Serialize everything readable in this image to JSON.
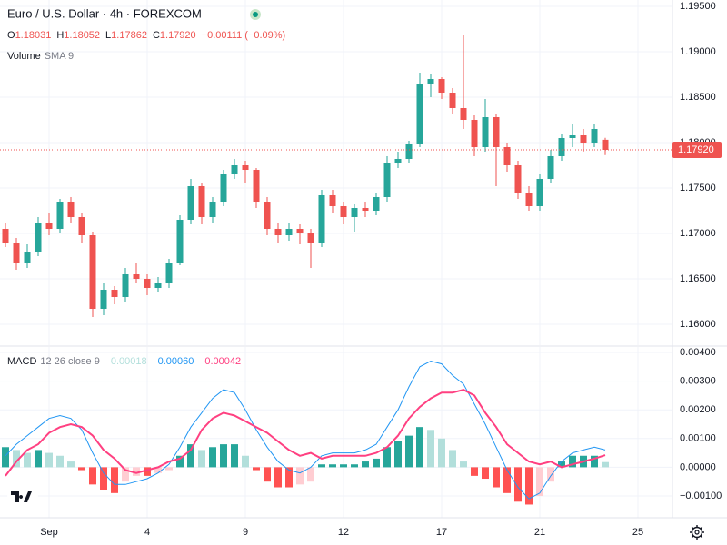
{
  "chart_data": [
    {
      "type": "candlestick",
      "title": "Euro / U.S. Dollar · 4h · FOREXCOM",
      "ohlc_labels": [
        {
          "key": "O",
          "value": "1.18031"
        },
        {
          "key": "H",
          "value": "1.18052"
        },
        {
          "key": "L",
          "value": "1.17862"
        },
        {
          "key": "C",
          "value": "1.17920"
        }
      ],
      "change_label": "−0.00111 (−0.09%)",
      "indicator_label": "Volume",
      "indicator_params": "SMA 9",
      "last_price_label": "1.17920",
      "up_color": "#26a69a",
      "down_color": "#ef5350",
      "open": [
        1.1705,
        1.169,
        1.1668,
        1.168,
        1.1712,
        1.1705,
        1.1735,
        1.1718,
        1.1698,
        1.1617,
        1.1638,
        1.163,
        1.1655,
        1.165,
        1.164,
        1.1645,
        1.1668,
        1.1715,
        1.1752,
        1.1718,
        1.1735,
        1.1765,
        1.1775,
        1.177,
        1.1735,
        1.1705,
        1.1698,
        1.1705,
        1.17,
        1.169,
        1.1742,
        1.173,
        1.1718,
        1.1728,
        1.1725,
        1.174,
        1.1778,
        1.1782,
        1.1798,
        1.1865,
        1.187,
        1.1855,
        1.1838,
        1.1825,
        1.1795,
        1.1828,
        1.1795,
        1.1775,
        1.1745,
        1.173,
        1.176,
        1.1785,
        1.1805,
        1.1808,
        1.18,
        1.18031
      ],
      "high": [
        1.1712,
        1.1695,
        1.1688,
        1.1718,
        1.1722,
        1.1738,
        1.174,
        1.1722,
        1.1702,
        1.1645,
        1.1642,
        1.1662,
        1.1668,
        1.1655,
        1.1652,
        1.1672,
        1.172,
        1.176,
        1.1755,
        1.174,
        1.177,
        1.1782,
        1.178,
        1.1772,
        1.174,
        1.1712,
        1.1712,
        1.171,
        1.1705,
        1.1748,
        1.1748,
        1.1735,
        1.1732,
        1.1735,
        1.1745,
        1.1785,
        1.179,
        1.1802,
        1.1877,
        1.1875,
        1.1872,
        1.186,
        1.1918,
        1.183,
        1.1848,
        1.1832,
        1.18,
        1.178,
        1.1752,
        1.1765,
        1.1792,
        1.181,
        1.182,
        1.1815,
        1.182,
        1.18052
      ],
      "low": [
        1.1685,
        1.166,
        1.1662,
        1.1675,
        1.1698,
        1.17,
        1.1712,
        1.169,
        1.1608,
        1.161,
        1.1622,
        1.1625,
        1.1645,
        1.1632,
        1.1635,
        1.164,
        1.1665,
        1.171,
        1.171,
        1.1712,
        1.173,
        1.176,
        1.1755,
        1.1728,
        1.1698,
        1.169,
        1.1692,
        1.1688,
        1.1662,
        1.1685,
        1.1722,
        1.171,
        1.1702,
        1.1718,
        1.172,
        1.1735,
        1.1772,
        1.1778,
        1.1795,
        1.185,
        1.1848,
        1.1832,
        1.1815,
        1.1785,
        1.179,
        1.1752,
        1.1768,
        1.1738,
        1.1725,
        1.1725,
        1.1755,
        1.178,
        1.1795,
        1.179,
        1.1795,
        1.17862
      ],
      "close": [
        1.169,
        1.1668,
        1.168,
        1.1712,
        1.1705,
        1.1735,
        1.1718,
        1.1698,
        1.1617,
        1.1638,
        1.163,
        1.1655,
        1.165,
        1.164,
        1.1645,
        1.1668,
        1.1715,
        1.1752,
        1.1718,
        1.1735,
        1.1765,
        1.1775,
        1.177,
        1.1735,
        1.1705,
        1.1698,
        1.1705,
        1.17,
        1.169,
        1.1742,
        1.173,
        1.1718,
        1.1728,
        1.1725,
        1.174,
        1.1778,
        1.1782,
        1.1798,
        1.1865,
        1.187,
        1.1855,
        1.1838,
        1.1825,
        1.1795,
        1.1828,
        1.1795,
        1.1775,
        1.1745,
        1.173,
        1.176,
        1.1785,
        1.1805,
        1.1808,
        1.18,
        1.1815,
        1.1792
      ],
      "xlim": [
        -0.5,
        61.5
      ],
      "xticks": [
        {
          "value": 4,
          "label": "Sep"
        },
        {
          "value": 13,
          "label": "4"
        },
        {
          "value": 22,
          "label": "9"
        },
        {
          "value": 31,
          "label": "12"
        },
        {
          "value": 40,
          "label": "17"
        },
        {
          "value": 49,
          "label": "21"
        },
        {
          "value": 58,
          "label": "25"
        }
      ],
      "ylim": [
        1.1577,
        1.1957
      ],
      "yticks": [
        {
          "value": 1.195,
          "label": "1.19500"
        },
        {
          "value": 1.19,
          "label": "1.19000"
        },
        {
          "value": 1.185,
          "label": "1.18500"
        },
        {
          "value": 1.18,
          "label": "1.18000"
        },
        {
          "value": 1.175,
          "label": "1.17500"
        },
        {
          "value": 1.17,
          "label": "1.17000"
        },
        {
          "value": 1.165,
          "label": "1.16500"
        },
        {
          "value": 1.16,
          "label": "1.16000"
        }
      ],
      "grid": true
    },
    {
      "type": "macd",
      "title": "MACD",
      "params": "12 26 close 9",
      "last_labels": [
        "0.00018",
        "0.00060",
        "0.00042"
      ],
      "series": [
        {
          "name": "Histogram",
          "colors": [
            "#26a69a",
            "#b2dfdb",
            "#ff5252",
            "#ffcdd2"
          ],
          "color": "#b2dfdb",
          "values": [
            0.0007,
            0.0006,
            0.0005,
            0.0006,
            0.0005,
            0.0004,
            0.0002,
            -0.0001,
            -0.0006,
            -0.0008,
            -0.0009,
            -0.0005,
            -0.0003,
            -0.0003,
            -0.0002,
            -0.0001,
            0.0004,
            0.0008,
            0.0006,
            0.0007,
            0.0008,
            0.0008,
            0.0004,
            -0.0001,
            -0.0005,
            -0.0007,
            -0.0007,
            -0.0006,
            -0.0005,
            0.0001,
            0.0001,
            0.0001,
            0.0001,
            0.0002,
            0.0003,
            0.0007,
            0.0009,
            0.0011,
            0.0014,
            0.0013,
            0.001,
            0.0006,
            0.0002,
            -0.0003,
            -0.0004,
            -0.0007,
            -0.0009,
            -0.0012,
            -0.0013,
            -0.001,
            -0.0005,
            0.0002,
            0.0004,
            0.0004,
            0.0004,
            0.00018
          ]
        },
        {
          "name": "MACD",
          "color": "#2196f3",
          "values": [
            0.0004,
            0.0008,
            0.0011,
            0.0014,
            0.0017,
            0.0018,
            0.0017,
            0.0013,
            0.0005,
            -0.0002,
            -0.0006,
            -0.0006,
            -0.0005,
            -0.0004,
            -0.0002,
            0.0001,
            0.0007,
            0.0014,
            0.0019,
            0.0024,
            0.0027,
            0.0026,
            0.002,
            0.0013,
            0.0007,
            0.0002,
            -0.0001,
            -0.0002,
            0,
            0.0004,
            0.0005,
            0.0005,
            0.0005,
            0.0006,
            0.0008,
            0.0014,
            0.002,
            0.0028,
            0.0035,
            0.0037,
            0.0036,
            0.0032,
            0.0029,
            0.0022,
            0.0015,
            0.0007,
            -0.0001,
            -0.0007,
            -0.0011,
            -0.0009,
            -0.0003,
            0.0002,
            0.0005,
            0.0006,
            0.0007,
            0.0006
          ]
        },
        {
          "name": "Signal",
          "color": "#ff4081",
          "values": [
            -0.0003,
            0.0002,
            0.0006,
            0.0008,
            0.0012,
            0.0014,
            0.0015,
            0.0014,
            0.0011,
            0.0006,
            0.0003,
            -0.0001,
            -0.0002,
            -0.0001,
            0,
            0.0002,
            0.0003,
            0.0006,
            0.0013,
            0.0017,
            0.0019,
            0.0018,
            0.0016,
            0.0014,
            0.0012,
            0.0009,
            0.0006,
            0.0004,
            0.0005,
            0.0003,
            0.0004,
            0.0004,
            0.0004,
            0.0004,
            0.0005,
            0.0007,
            0.0011,
            0.0017,
            0.0021,
            0.0024,
            0.0026,
            0.0026,
            0.0027,
            0.0025,
            0.0019,
            0.0014,
            0.0008,
            0.0005,
            0.0002,
            0.0001,
            0.0002,
            0,
            0.0001,
            0.0002,
            0.0003,
            0.00042
          ]
        }
      ],
      "ylim": [
        -0.00176,
        0.00419
      ],
      "yticks": [
        {
          "value": 0.004,
          "label": "0.00400"
        },
        {
          "value": 0.003,
          "label": "0.00300"
        },
        {
          "value": 0.002,
          "label": "0.00200"
        },
        {
          "value": 0.001,
          "label": "0.00100"
        },
        {
          "value": 0,
          "label": "0.00000"
        },
        {
          "value": -0.001,
          "label": "−0.00100"
        }
      ],
      "grid": true
    }
  ]
}
